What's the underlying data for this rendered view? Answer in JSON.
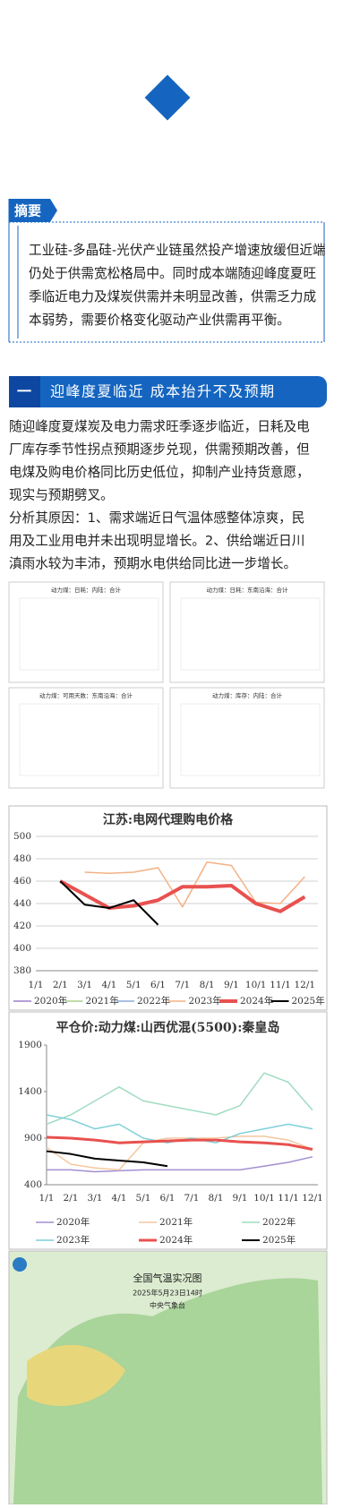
{
  "abstract": {
    "label": "摘要",
    "lines": [
      "工业硅-多晶硅-光伏产业链虽然投产增速放缓但近端",
      "仍处于供需宽松格局中。同时成本端随迎峰度夏旺",
      "季临近电力及煤炭供需并未明显改善，供需乏力成",
      "本弱势，需要价格变化驱动产业供需再平衡。"
    ]
  },
  "section": {
    "number": "一",
    "title": "迎峰度夏临近 成本抬升不及预期"
  },
  "paragraph": [
    "随迎峰度夏煤炭及电力需求旺季逐步临近，日耗及电",
    "厂库存季节性拐点预期逐步兑现，供需预期改善，但",
    "电煤及购电价格同比历史低位，抑制产业持货意愿，",
    "现实与预期劈叉。",
    "分析其原因：1、需求端近日气温体感整体凉爽，民",
    "用及工业用电并未出现明显增长。2、供给端近日川",
    "滇雨水较为丰沛，预期水电供给同比进一步增长。"
  ],
  "small_charts": [
    {
      "title": "动力煤：日耗：内陆：合计"
    },
    {
      "title": "动力煤：日耗：东南沿海：合计"
    },
    {
      "title": "动力煤：可用天数：东南沿海：合计"
    },
    {
      "title": "动力煤：库存：内陆：合计"
    }
  ],
  "chart_data": [
    {
      "type": "line",
      "title": "江苏:电网代理购电价格",
      "categories": [
        "1/1",
        "2/1",
        "3/1",
        "4/1",
        "5/1",
        "6/1",
        "7/1",
        "8/1",
        "9/1",
        "10/1",
        "11/1",
        "12/1"
      ],
      "ylim": [
        380,
        500
      ],
      "yticks": [
        380,
        400,
        420,
        440,
        460,
        480,
        500
      ],
      "grid": true,
      "series": [
        {
          "name": "2020年",
          "color": "#9b7fc8",
          "width": 1.5,
          "values": [
            null,
            null,
            null,
            null,
            null,
            null,
            null,
            null,
            null,
            null,
            null,
            null
          ]
        },
        {
          "name": "2021年",
          "color": "#a8d08d",
          "width": 1.5,
          "values": [
            null,
            null,
            null,
            null,
            null,
            null,
            null,
            null,
            null,
            null,
            null,
            null
          ]
        },
        {
          "name": "2022年",
          "color": "#8eaadb",
          "width": 1.5,
          "values": [
            null,
            null,
            null,
            null,
            null,
            null,
            null,
            null,
            null,
            null,
            null,
            null
          ]
        },
        {
          "name": "2023年",
          "color": "#f4b183",
          "width": 1.5,
          "values": [
            null,
            null,
            468,
            467,
            468,
            472,
            437,
            477,
            474,
            441,
            440,
            464
          ]
        },
        {
          "name": "2024年",
          "color": "#e8514f",
          "width": 4,
          "values": [
            null,
            460,
            448,
            436,
            438,
            443,
            455,
            455,
            456,
            440,
            433,
            446
          ]
        },
        {
          "name": "2025年",
          "color": "#000000",
          "width": 2,
          "values": [
            null,
            460,
            439,
            436,
            443,
            421,
            null,
            null,
            null,
            null,
            null,
            null
          ]
        }
      ]
    },
    {
      "type": "line",
      "title": "平仓价:动力煤:山西优混(5500):秦皇岛",
      "categories": [
        "1/1",
        "2/1",
        "3/1",
        "4/1",
        "5/1",
        "6/1",
        "7/1",
        "8/1",
        "9/1",
        "10/1",
        "11/1",
        "12/1"
      ],
      "ylim": [
        400,
        1900
      ],
      "yticks": [
        400,
        900,
        1400,
        1900
      ],
      "grid": false,
      "series": [
        {
          "name": "2020年",
          "color": "#a48fd0",
          "width": 1.5,
          "values": [
            560,
            560,
            540,
            550,
            560,
            560,
            560,
            560,
            560,
            600,
            640,
            700
          ]
        },
        {
          "name": "2021年",
          "color": "#f4c7a0",
          "width": 1.5,
          "values": [
            800,
            620,
            580,
            560,
            850,
            900,
            900,
            900,
            920,
            920,
            880,
            780
          ]
        },
        {
          "name": "2022年",
          "color": "#9fdcc0",
          "width": 1.5,
          "values": [
            1050,
            1150,
            1300,
            1450,
            1300,
            1250,
            1200,
            1150,
            1250,
            1600,
            1500,
            1200
          ]
        },
        {
          "name": "2023年",
          "color": "#7fcfd8",
          "width": 1.5,
          "values": [
            1150,
            1100,
            1000,
            1050,
            900,
            850,
            900,
            850,
            950,
            1000,
            1050,
            1000
          ]
        },
        {
          "name": "2024年",
          "color": "#e8514f",
          "width": 3,
          "values": [
            910,
            900,
            880,
            850,
            860,
            870,
            880,
            880,
            860,
            850,
            830,
            780
          ]
        },
        {
          "name": "2025年",
          "color": "#000000",
          "width": 2,
          "values": [
            760,
            730,
            680,
            660,
            640,
            600,
            null,
            null,
            null,
            null,
            null,
            null
          ]
        }
      ]
    }
  ],
  "map": {
    "title": "全国气温实况图",
    "date": "2025年5月23日14时",
    "source": "中央气象台"
  }
}
